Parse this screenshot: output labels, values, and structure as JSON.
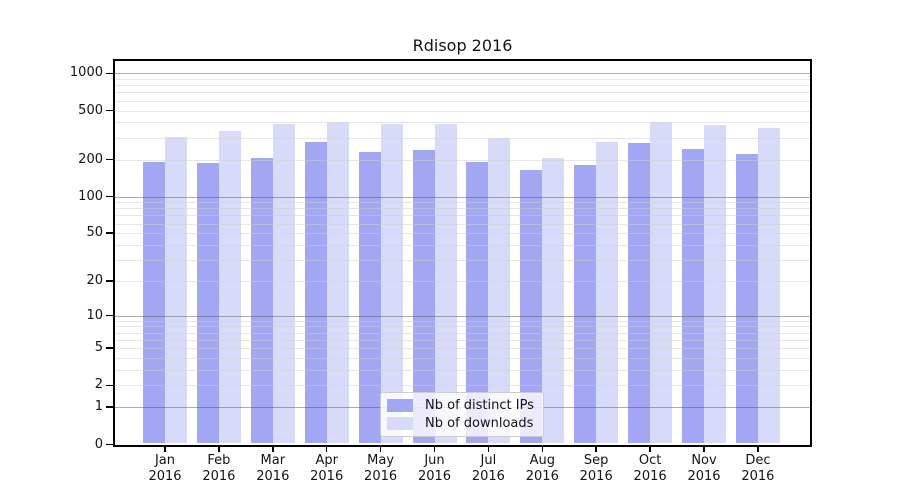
{
  "chart_data": {
    "type": "bar",
    "title": "Rdisop 2016",
    "categories": [
      "Jan 2016",
      "Feb 2016",
      "Mar 2016",
      "Apr 2016",
      "May 2016",
      "Jun 2016",
      "Jul 2016",
      "Aug 2016",
      "Sep 2016",
      "Oct 2016",
      "Nov 2016",
      "Dec 2016"
    ],
    "series": [
      {
        "name": "Nb of distinct IPs",
        "color": "#a2a6f3",
        "values": [
          190,
          187,
          206,
          280,
          229,
          238,
          192,
          166,
          181,
          275,
          244,
          220
        ]
      },
      {
        "name": "Nb of downloads",
        "color": "#d8dafa",
        "values": [
          303,
          341,
          386,
          401,
          387,
          387,
          300,
          206,
          279,
          404,
          382,
          362
        ]
      }
    ],
    "xlabel": "",
    "ylabel": "",
    "y_scale": "log(1+x)",
    "y_ticks": [
      0,
      1,
      2,
      5,
      10,
      20,
      50,
      100,
      200,
      500,
      1000
    ],
    "ylim": [
      0,
      1259
    ],
    "grid": true,
    "legend_position": "lower center"
  },
  "colors": {
    "ips_bar": "#a2a6f3",
    "downloads_bar": "#d8dafa",
    "major_gridline": "#ababab",
    "minor_gridline": "#e7e7e7",
    "axis_frame": "#000000",
    "legend_border": "#cccccc",
    "legend_background": "#ffffff",
    "text": "#141414"
  }
}
